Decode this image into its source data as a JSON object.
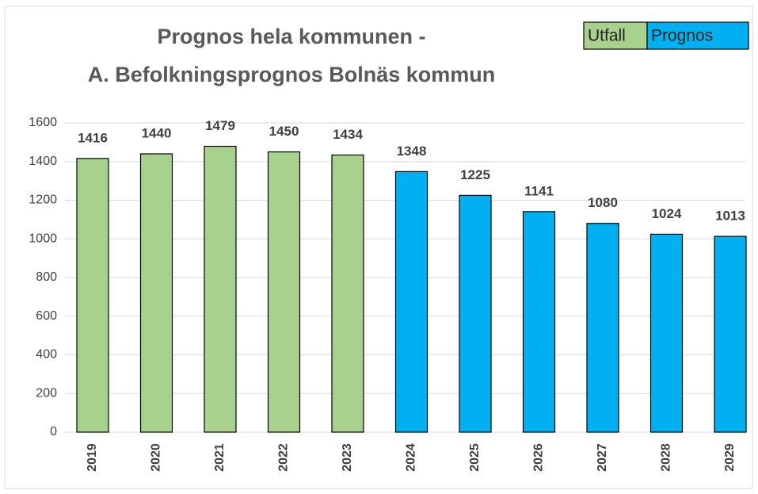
{
  "chart_data": {
    "type": "bar",
    "title": [
      "Prognos hela kommunen -",
      "A. Befolkningsprognos Bolnäs kommun"
    ],
    "categories": [
      "2019",
      "2020",
      "2021",
      "2022",
      "2023",
      "2024",
      "2025",
      "2026",
      "2027",
      "2028",
      "2029"
    ],
    "series": [
      {
        "name": "Utfall",
        "color": "#a9d18e",
        "values": [
          1416,
          1440,
          1479,
          1450,
          1434,
          null,
          null,
          null,
          null,
          null,
          null
        ]
      },
      {
        "name": "Prognos",
        "color": "#00b0f0",
        "values": [
          null,
          null,
          null,
          null,
          null,
          1348,
          1225,
          1141,
          1080,
          1024,
          1013
        ]
      }
    ],
    "ylim": [
      0,
      1600
    ],
    "yticks": [
      0,
      200,
      400,
      600,
      800,
      1000,
      1200,
      1400,
      1600
    ],
    "grid": true
  }
}
